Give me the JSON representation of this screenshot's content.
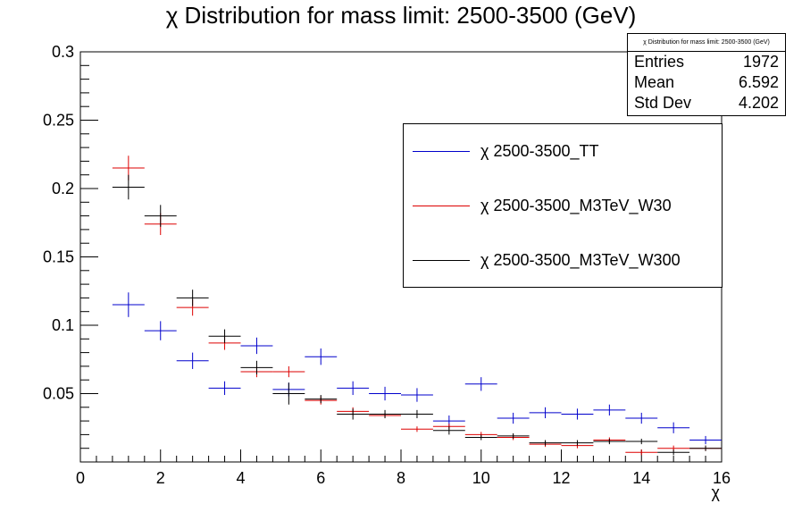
{
  "chart_data": {
    "type": "scatter",
    "title": "χ Distribution for mass limit: 2500-3500 (GeV)",
    "xlabel": "χ",
    "ylabel": "",
    "xlim": [
      0,
      16
    ],
    "ylim": [
      0,
      0.3
    ],
    "x_ticks": [
      0,
      2,
      4,
      6,
      8,
      10,
      12,
      14,
      16
    ],
    "y_ticks": [
      0.05,
      0.1,
      0.15,
      0.2,
      0.25,
      0.3
    ],
    "grid": false,
    "bin_edges": [
      0.8,
      1.6,
      2.4,
      3.2,
      4.0,
      4.8,
      5.6,
      6.4,
      7.2,
      8.0,
      8.8,
      9.6,
      10.4,
      11.2,
      12.0,
      12.8,
      13.6,
      14.4,
      15.2,
      16.0
    ],
    "series": [
      {
        "name": "χ 2500-3500_TT",
        "color": "#0000cc",
        "values": [
          0.115,
          0.096,
          0.074,
          0.054,
          0.085,
          0.053,
          0.077,
          0.054,
          0.05,
          0.049,
          0.03,
          0.057,
          0.032,
          0.036,
          0.035,
          0.038,
          0.032,
          0.025,
          0.016
        ],
        "errors": [
          0.009,
          0.007,
          0.006,
          0.005,
          0.006,
          0.005,
          0.006,
          0.005,
          0.005,
          0.005,
          0.004,
          0.005,
          0.004,
          0.004,
          0.004,
          0.004,
          0.004,
          0.004,
          0.003
        ]
      },
      {
        "name": "χ 2500-3500_M3TeV_W30",
        "color": "#dd0000",
        "values": [
          0.215,
          0.174,
          0.113,
          0.087,
          0.066,
          0.066,
          0.045,
          0.037,
          0.034,
          0.024,
          0.026,
          0.02,
          0.018,
          0.013,
          0.012,
          0.016,
          0.007,
          0.01,
          0.01
        ],
        "errors": [
          0.009,
          0.008,
          0.006,
          0.005,
          0.004,
          0.004,
          0.003,
          0.003,
          0.002,
          0.002,
          0.002,
          0.002,
          0.002,
          0.002,
          0.002,
          0.002,
          0.002,
          0.002,
          0.002
        ]
      },
      {
        "name": "χ 2500-3500_M3TeV_W300",
        "color": "#000000",
        "values": [
          0.201,
          0.18,
          0.12,
          0.092,
          0.069,
          0.05,
          0.046,
          0.035,
          0.035,
          0.035,
          0.023,
          0.018,
          0.019,
          0.014,
          0.014,
          0.015,
          0.015,
          0.007,
          0.01
        ],
        "errors": [
          0.009,
          0.008,
          0.006,
          0.005,
          0.005,
          0.008,
          0.003,
          0.004,
          0.003,
          0.003,
          0.003,
          0.002,
          0.002,
          0.002,
          0.002,
          0.002,
          0.002,
          0.002,
          0.002
        ]
      }
    ]
  },
  "stats_box": {
    "title": "χ Distribution for mass limit: 2500-3500 (GeV)",
    "rows": [
      {
        "label": "Entries",
        "value": "1972"
      },
      {
        "label": "Mean",
        "value": "6.592"
      },
      {
        "label": "Std Dev",
        "value": "4.202"
      }
    ]
  },
  "legend": {
    "entries": [
      {
        "label": "χ 2500-3500_TT",
        "color": "#0000cc"
      },
      {
        "label": "χ 2500-3500_M3TeV_W30",
        "color": "#dd0000"
      },
      {
        "label": "χ 2500-3500_M3TeV_W300",
        "color": "#000000"
      }
    ]
  }
}
